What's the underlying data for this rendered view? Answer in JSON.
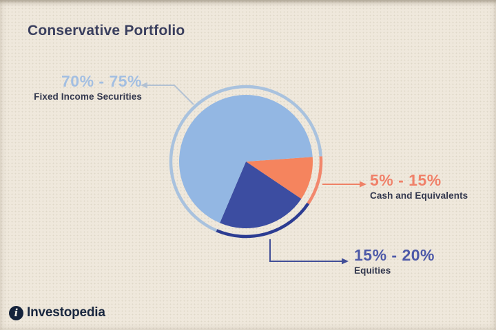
{
  "page": {
    "background_color": "#efe8dc"
  },
  "title": {
    "text": "Conservative Portfolio",
    "color": "#3a3f5e"
  },
  "callout_name_color": "#33384e",
  "brand": {
    "name": "Investopedia",
    "text_color": "#19273f",
    "mark_background": "#15233b",
    "mark_glyph": "i"
  },
  "chart_data": {
    "type": "pie",
    "title": "Conservative Portfolio",
    "direction": "clockwise",
    "start_angle_deg": -4,
    "legend_position": "callout-labels-around-pie",
    "slices": [
      {
        "label": "Cash and Equivalents",
        "range_label": "5% - 15%",
        "range_pct": [
          5,
          15
        ],
        "drawn_deg": 38,
        "color": "#f5845e",
        "ring_color": "#f2876c",
        "text_color": "#f08169",
        "leader_color": "#ef8166"
      },
      {
        "label": "Equities",
        "range_label": "15% - 20%",
        "range_pct": [
          15,
          20
        ],
        "drawn_deg": 79,
        "color": "#3c4da1",
        "ring_color": "#2c3c92",
        "text_color": "#4d59a8",
        "leader_color": "#414e97"
      },
      {
        "label": "Fixed Income Securities",
        "range_label": "70% - 75%",
        "range_pct": [
          70,
          75
        ],
        "drawn_deg": 243,
        "color": "#93b7e3",
        "ring_color": "#a9c2de",
        "text_color": "#a3bfe2",
        "leader_color": "#b2c1d3"
      }
    ]
  }
}
